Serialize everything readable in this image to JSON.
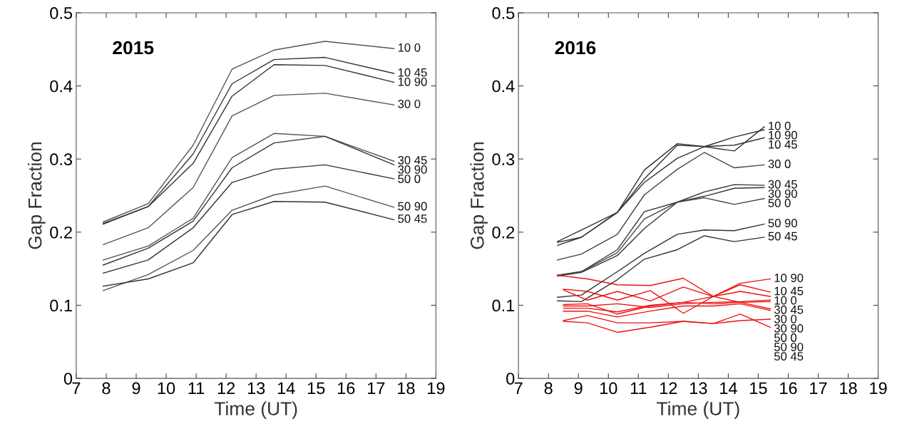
{
  "chart_data": [
    {
      "type": "line",
      "title": "2015",
      "xlabel": "Time (UT)",
      "ylabel": "Gap Fraction",
      "xlim": [
        7,
        19
      ],
      "xticks": [
        7,
        8,
        9,
        10,
        11,
        12,
        13,
        14,
        15,
        16,
        17,
        18,
        19
      ],
      "ylim": [
        0,
        0.5
      ],
      "yticks": [
        0,
        0.1,
        0.2,
        0.3,
        0.4,
        0.5
      ],
      "grid": false,
      "legend": false,
      "x": [
        7.9,
        9.4,
        10.9,
        12.2,
        13.6,
        15.3,
        17.6
      ],
      "series": [
        {
          "name": "10 0",
          "color": "#555555",
          "values": [
            0.214,
            0.239,
            0.319,
            0.423,
            0.449,
            0.461,
            0.451
          ]
        },
        {
          "name": "10 45",
          "color": "#333333",
          "values": [
            0.212,
            0.235,
            0.307,
            0.403,
            0.436,
            0.439,
            0.417
          ]
        },
        {
          "name": "10 90",
          "color": "#333333",
          "values": [
            0.211,
            0.235,
            0.294,
            0.386,
            0.429,
            0.428,
            0.405
          ]
        },
        {
          "name": "30 0",
          "color": "#555555",
          "values": [
            0.183,
            0.206,
            0.261,
            0.359,
            0.387,
            0.39,
            0.374
          ]
        },
        {
          "name": "30 45",
          "color": "#555555",
          "values": [
            0.162,
            0.181,
            0.219,
            0.302,
            0.335,
            0.331,
            0.297
          ]
        },
        {
          "name": "30 90",
          "color": "#333333",
          "values": [
            0.155,
            0.178,
            0.215,
            0.288,
            0.322,
            0.331,
            0.292
          ]
        },
        {
          "name": "50 0",
          "color": "#333333",
          "values": [
            0.144,
            0.162,
            0.206,
            0.268,
            0.286,
            0.292,
            0.273
          ]
        },
        {
          "name": "50 90",
          "color": "#555555",
          "values": [
            0.12,
            0.142,
            0.175,
            0.23,
            0.251,
            0.263,
            0.234
          ]
        },
        {
          "name": "50 45",
          "color": "#333333",
          "values": [
            0.126,
            0.136,
            0.158,
            0.224,
            0.242,
            0.241,
            0.217
          ]
        }
      ]
    },
    {
      "type": "line",
      "title": "2016",
      "xlabel": "Time (UT)",
      "ylabel": "Gap Fraction",
      "xlim": [
        7,
        19
      ],
      "xticks": [
        7,
        8,
        9,
        10,
        11,
        12,
        13,
        14,
        15,
        16,
        17,
        18,
        19
      ],
      "ylim": [
        0,
        0.5
      ],
      "yticks": [
        0,
        0.1,
        0.2,
        0.3,
        0.4,
        0.5
      ],
      "grid": false,
      "legend": false,
      "series": [
        {
          "name": "10 0",
          "color": "#333333",
          "x": [
            8.3,
            9.1,
            10.3,
            11.2,
            12.3,
            13.2,
            14.2,
            15.2
          ],
          "values": [
            0.187,
            0.203,
            0.227,
            0.285,
            0.321,
            0.317,
            0.311,
            0.344
          ]
        },
        {
          "name": "10 90",
          "color": "#333333",
          "x": [
            8.3,
            9.1,
            10.3,
            11.2,
            12.3,
            13.2,
            14.2,
            15.2
          ],
          "values": [
            0.182,
            0.193,
            0.227,
            0.268,
            0.301,
            0.317,
            0.33,
            0.34
          ]
        },
        {
          "name": "10 45",
          "color": "#333333",
          "x": [
            8.3,
            9.1,
            10.3,
            11.2,
            12.3,
            13.2,
            14.2,
            15.2
          ],
          "values": [
            0.186,
            0.193,
            0.227,
            0.273,
            0.319,
            0.317,
            0.319,
            0.329
          ]
        },
        {
          "name": "30 0",
          "color": "#444444",
          "x": [
            8.3,
            9.1,
            10.3,
            11.2,
            12.3,
            13.2,
            14.2,
            15.2
          ],
          "values": [
            0.162,
            0.17,
            0.197,
            0.251,
            0.286,
            0.309,
            0.288,
            0.292
          ]
        },
        {
          "name": "30 45",
          "color": "#333333",
          "x": [
            8.3,
            9.1,
            10.3,
            11.2,
            12.3,
            13.2,
            14.2,
            15.2
          ],
          "values": [
            0.141,
            0.146,
            0.176,
            0.228,
            0.241,
            0.255,
            0.265,
            0.264
          ]
        },
        {
          "name": "30 90",
          "color": "#333333",
          "x": [
            8.3,
            9.1,
            10.3,
            11.2,
            12.3,
            13.2,
            14.2,
            15.2
          ],
          "values": [
            0.14,
            0.145,
            0.168,
            0.205,
            0.241,
            0.249,
            0.26,
            0.261
          ]
        },
        {
          "name": "50 0",
          "color": "#444444",
          "x": [
            8.3,
            9.1,
            10.3,
            11.2,
            12.3,
            13.2,
            14.2,
            15.2
          ],
          "values": [
            0.141,
            0.146,
            0.172,
            0.218,
            0.241,
            0.247,
            0.238,
            0.246
          ]
        },
        {
          "name": "50 90",
          "color": "#333333",
          "x": [
            8.3,
            9.1,
            10.3,
            11.2,
            12.3,
            13.2,
            14.2,
            15.2
          ],
          "values": [
            0.111,
            0.114,
            0.146,
            0.171,
            0.197,
            0.203,
            0.202,
            0.211
          ]
        },
        {
          "name": "50 45",
          "color": "#333333",
          "x": [
            8.3,
            9.1,
            10.3,
            11.2,
            12.3,
            13.2,
            14.2,
            15.2
          ],
          "values": [
            0.106,
            0.105,
            0.135,
            0.163,
            0.176,
            0.195,
            0.187,
            0.193
          ]
        },
        {
          "name": "10 90",
          "color": "#ee1111",
          "x": [
            8.3,
            9.3,
            10.3,
            11.4,
            12.5,
            13.5,
            14.4,
            15.4
          ],
          "values": [
            0.141,
            0.136,
            0.128,
            0.127,
            0.137,
            0.112,
            0.13,
            0.136
          ]
        },
        {
          "name": "10 45",
          "color": "#ee1111",
          "x": [
            8.5,
            9.3,
            10.3,
            11.4,
            12.5,
            13.5,
            14.4,
            15.4
          ],
          "values": [
            0.121,
            0.107,
            0.119,
            0.106,
            0.125,
            0.112,
            0.128,
            0.118
          ]
        },
        {
          "name": "10 0",
          "color": "#ee1111",
          "x": [
            8.5,
            9.3,
            10.3,
            11.4,
            12.5,
            13.5,
            14.4,
            15.4
          ],
          "values": [
            0.122,
            0.119,
            0.107,
            0.12,
            0.089,
            0.112,
            0.119,
            0.112
          ]
        },
        {
          "name": "30 45",
          "color": "#ee1111",
          "x": [
            8.5,
            9.3,
            10.3,
            11.4,
            12.5,
            13.5,
            14.4,
            15.4
          ],
          "values": [
            0.099,
            0.099,
            0.102,
            0.097,
            0.102,
            0.104,
            0.105,
            0.107
          ]
        },
        {
          "name": "30 0",
          "color": "#ee1111",
          "x": [
            8.5,
            9.3,
            10.3,
            11.4,
            12.5,
            13.5,
            14.4,
            15.4
          ],
          "values": [
            0.096,
            0.096,
            0.091,
            0.1,
            0.104,
            0.102,
            0.104,
            0.105
          ]
        },
        {
          "name": "30 90",
          "color": "#ee1111",
          "x": [
            8.5,
            9.3,
            10.3,
            11.4,
            12.5,
            13.5,
            14.4,
            15.4
          ],
          "values": [
            0.101,
            0.102,
            0.088,
            0.099,
            0.104,
            0.112,
            0.104,
            0.095
          ]
        },
        {
          "name": "50 0",
          "color": "#ee1111",
          "x": [
            8.5,
            9.3,
            10.3,
            11.4,
            12.5,
            13.5,
            14.4,
            15.4
          ],
          "values": [
            0.092,
            0.092,
            0.084,
            0.092,
            0.099,
            0.099,
            0.102,
            0.093
          ]
        },
        {
          "name": "50 90",
          "color": "#ee1111",
          "x": [
            8.5,
            9.3,
            10.3,
            11.4,
            12.5,
            13.5,
            14.4,
            15.4
          ],
          "values": [
            0.079,
            0.086,
            0.076,
            0.076,
            0.078,
            0.075,
            0.079,
            0.081
          ]
        },
        {
          "name": "50 45",
          "color": "#ee1111",
          "x": [
            8.5,
            9.3,
            10.3,
            11.4,
            12.5,
            13.5,
            14.4,
            15.4
          ],
          "values": [
            0.078,
            0.076,
            0.063,
            0.07,
            0.078,
            0.075,
            0.088,
            0.07
          ]
        }
      ]
    }
  ]
}
